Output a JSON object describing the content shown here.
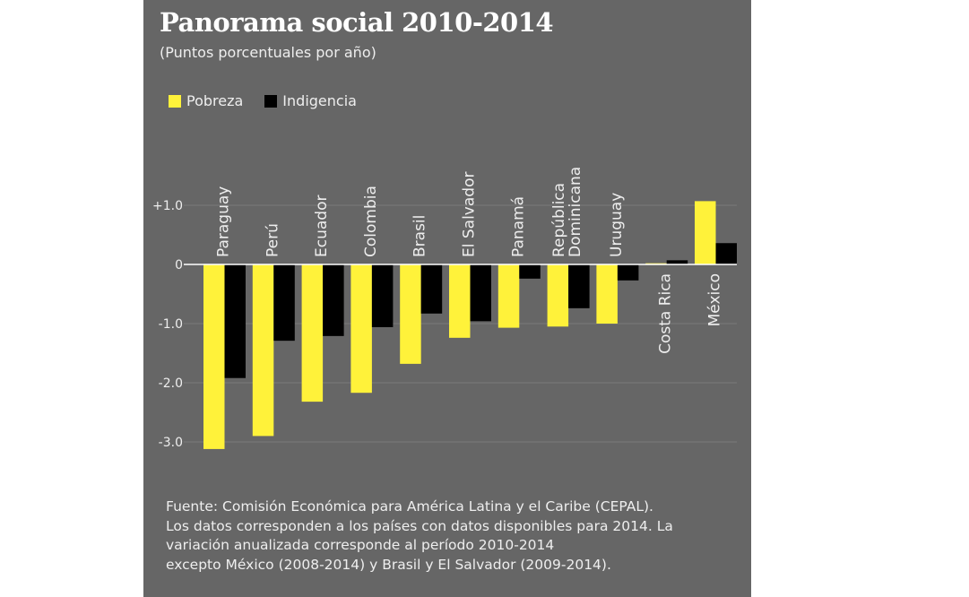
{
  "chart_data": {
    "type": "bar",
    "title": "Panorama social 2010-2014",
    "subtitle": "(Puntos porcentuales por año)",
    "categories": [
      "Paraguay",
      "Perú",
      "Ecuador",
      "Colombia",
      "Brasil",
      "El Salvador",
      "Panamá",
      "República Dominicana",
      "Uruguay",
      "Costa Rica",
      "México"
    ],
    "series": [
      {
        "name": "Pobreza",
        "color": "#fff23a",
        "values": [
          -3.12,
          -2.9,
          -2.32,
          -2.17,
          -1.68,
          -1.24,
          -1.07,
          -1.05,
          -1.0,
          0.02,
          1.07
        ]
      },
      {
        "name": "Indigencia",
        "color": "#000000",
        "values": [
          -1.92,
          -1.29,
          -1.21,
          -1.06,
          -0.83,
          -0.96,
          -0.24,
          -0.74,
          -0.27,
          0.07,
          0.36
        ]
      }
    ],
    "yticks": [
      1.0,
      0,
      -1.0,
      -2.0,
      -3.0
    ],
    "ytick_labels": [
      "+1.0",
      "0",
      "-1.0",
      "-2.0",
      "-3.0"
    ],
    "ylim": [
      -3.2,
      1.1
    ],
    "grid": true,
    "legend": "top-left",
    "note": [
      "Fuente: Comisión Económica para América Latina y el Caribe (CEPAL).",
      "Los datos corresponden a los países con datos disponibles para 2014. La",
      "variación anualizada corresponde al período 2010-2014",
      "excepto México (2008-2014) y Brasil y El Salvador (2009-2014)."
    ]
  }
}
